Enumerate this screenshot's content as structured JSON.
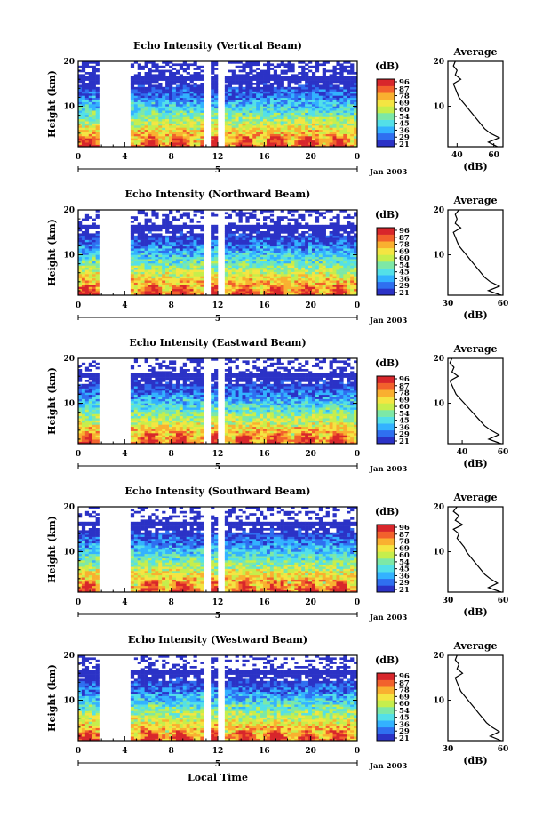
{
  "figure": {
    "xlabel": "Local Time",
    "date_label": "Jan 2003",
    "date_tick": "5",
    "ylabel": "Height (km)",
    "colorbar_unit": "(dB)",
    "colorbar_ticks": [
      "96",
      "87",
      "78",
      "69",
      "60",
      "54",
      "45",
      "36",
      "29",
      "21"
    ],
    "profile_title": "Average",
    "profile_xlabel": "(dB)"
  },
  "colors": {
    "colormap": [
      "#2b32c6",
      "#2f6ff0",
      "#33b2ff",
      "#53e0e8",
      "#7de8a6",
      "#c6ee4c",
      "#f4e542",
      "#f9b030",
      "#f2612c",
      "#d8262b"
    ],
    "profile_line": "#000000"
  },
  "chart_data": [
    {
      "type": "heatmap",
      "title": "Echo Intensity (Vertical Beam)",
      "xlabel": "Local Time",
      "ylabel": "Height (km)",
      "x_ticks": [
        "0",
        "4",
        "8",
        "12",
        "16",
        "20",
        "0"
      ],
      "xlim": [
        0,
        24
      ],
      "y_ticks": [
        "10",
        "20"
      ],
      "ylim": [
        1,
        20
      ],
      "colorbar": {
        "label": "(dB)",
        "ticks": [
          "96",
          "87",
          "78",
          "69",
          "60",
          "54",
          "45",
          "36",
          "29",
          "21"
        ]
      },
      "data_gaps_hours": [
        [
          1.9,
          4.5
        ],
        [
          10.9,
          11.4
        ],
        [
          12.1,
          12.6
        ],
        [
          13.1,
          13.3
        ],
        [
          22.7,
          22.9
        ]
      ],
      "profile": {
        "title": "Average",
        "xlabel": "(dB)",
        "x_ticks": [
          "40",
          "60"
        ],
        "xlim": [
          35,
          65
        ],
        "y_ticks": [
          "10",
          "20"
        ],
        "heights": [
          1,
          2,
          3,
          4,
          5,
          6,
          7,
          8,
          9,
          10,
          11,
          12,
          13,
          14,
          15,
          16,
          17,
          18,
          19,
          20
        ],
        "values": [
          62,
          57,
          63,
          58,
          55,
          53,
          51,
          49,
          47,
          45,
          43,
          41,
          40,
          39,
          38,
          42,
          39,
          40,
          38,
          39
        ]
      }
    },
    {
      "type": "heatmap",
      "title": "Echo Intensity (Northward Beam)",
      "xlabel": "Local Time",
      "ylabel": "Height (km)",
      "x_ticks": [
        "0",
        "4",
        "8",
        "12",
        "16",
        "20",
        "0"
      ],
      "xlim": [
        0,
        24
      ],
      "y_ticks": [
        "10",
        "20"
      ],
      "ylim": [
        1,
        20
      ],
      "colorbar": {
        "label": "(dB)",
        "ticks": [
          "96",
          "87",
          "78",
          "69",
          "60",
          "54",
          "45",
          "36",
          "29",
          "21"
        ]
      },
      "data_gaps_hours": [
        [
          1.9,
          4.5
        ],
        [
          10.9,
          11.4
        ],
        [
          12.1,
          12.6
        ],
        [
          13.1,
          13.3
        ],
        [
          22.7,
          22.9
        ]
      ],
      "profile": {
        "title": "Average",
        "xlabel": "(dB)",
        "x_ticks": [
          "30",
          "60"
        ],
        "xlim": [
          30,
          60
        ],
        "y_ticks": [
          "10",
          "20"
        ],
        "heights": [
          1,
          2,
          3,
          4,
          5,
          6,
          7,
          8,
          9,
          10,
          11,
          12,
          13,
          14,
          15,
          16,
          17,
          18,
          19,
          20
        ],
        "values": [
          59,
          52,
          58,
          53,
          50,
          48,
          46,
          44,
          42,
          40,
          38,
          36,
          35,
          34,
          33,
          37,
          34,
          35,
          34,
          36
        ]
      }
    },
    {
      "type": "heatmap",
      "title": "Echo Intensity (Eastward Beam)",
      "xlabel": "Local Time",
      "ylabel": "Height (km)",
      "x_ticks": [
        "0",
        "4",
        "8",
        "12",
        "16",
        "20",
        "0"
      ],
      "xlim": [
        0,
        24
      ],
      "y_ticks": [
        "10",
        "20"
      ],
      "ylim": [
        1,
        20
      ],
      "colorbar": {
        "label": "(dB)",
        "ticks": [
          "96",
          "87",
          "78",
          "69",
          "60",
          "54",
          "45",
          "36",
          "29",
          "21"
        ]
      },
      "data_gaps_hours": [
        [
          1.9,
          4.5
        ],
        [
          10.9,
          11.4
        ],
        [
          12.1,
          12.6
        ],
        [
          13.1,
          13.3
        ],
        [
          22.7,
          22.9
        ]
      ],
      "profile": {
        "title": "Average",
        "xlabel": "(dB)",
        "x_ticks": [
          "40",
          "60"
        ],
        "xlim": [
          33,
          60
        ],
        "y_ticks": [
          "10",
          "20"
        ],
        "heights": [
          1,
          2,
          3,
          4,
          5,
          6,
          7,
          8,
          9,
          10,
          11,
          12,
          13,
          14,
          15,
          16,
          17,
          18,
          19,
          20
        ],
        "values": [
          59,
          53,
          58,
          54,
          51,
          49,
          47,
          45,
          43,
          41,
          39,
          37,
          36,
          35,
          34,
          38,
          35,
          36,
          34,
          35
        ]
      }
    },
    {
      "type": "heatmap",
      "title": "Echo Intensity (Southward Beam)",
      "xlabel": "Local Time",
      "ylabel": "Height (km)",
      "x_ticks": [
        "0",
        "4",
        "8",
        "12",
        "16",
        "20",
        "0"
      ],
      "xlim": [
        0,
        24
      ],
      "y_ticks": [
        "10",
        "20"
      ],
      "ylim": [
        1,
        20
      ],
      "colorbar": {
        "label": "(dB)",
        "ticks": [
          "96",
          "87",
          "78",
          "69",
          "60",
          "54",
          "45",
          "36",
          "29",
          "21"
        ]
      },
      "data_gaps_hours": [
        [
          1.9,
          4.5
        ],
        [
          10.9,
          11.4
        ],
        [
          12.1,
          12.6
        ],
        [
          13.1,
          13.3
        ],
        [
          22.7,
          22.9
        ]
      ],
      "profile": {
        "title": "Average",
        "xlabel": "(dB)",
        "x_ticks": [
          "30",
          "60"
        ],
        "xlim": [
          30,
          60
        ],
        "y_ticks": [
          "10",
          "20"
        ],
        "heights": [
          1,
          2,
          3,
          4,
          5,
          6,
          7,
          8,
          9,
          10,
          11,
          12,
          13,
          14,
          15,
          16,
          17,
          18,
          19,
          20
        ],
        "values": [
          59,
          52,
          57,
          53,
          50,
          48,
          46,
          44,
          42,
          40,
          39,
          37,
          35,
          36,
          33,
          38,
          34,
          36,
          33,
          35
        ]
      }
    },
    {
      "type": "heatmap",
      "title": "Echo Intensity (Westward Beam)",
      "xlabel": "Local Time",
      "ylabel": "Height (km)",
      "x_ticks": [
        "0",
        "4",
        "8",
        "12",
        "16",
        "20",
        "0"
      ],
      "xlim": [
        0,
        24
      ],
      "y_ticks": [
        "10",
        "20"
      ],
      "ylim": [
        1,
        20
      ],
      "colorbar": {
        "label": "(dB)",
        "ticks": [
          "96",
          "87",
          "78",
          "69",
          "60",
          "54",
          "45",
          "36",
          "29",
          "21"
        ]
      },
      "data_gaps_hours": [
        [
          1.9,
          4.5
        ],
        [
          10.9,
          11.4
        ],
        [
          12.1,
          12.6
        ],
        [
          13.1,
          13.3
        ],
        [
          22.7,
          22.9
        ]
      ],
      "profile": {
        "title": "Average",
        "xlabel": "(dB)",
        "x_ticks": [
          "30",
          "60"
        ],
        "xlim": [
          30,
          60
        ],
        "y_ticks": [
          "10",
          "20"
        ],
        "heights": [
          1,
          2,
          3,
          4,
          5,
          6,
          7,
          8,
          9,
          10,
          11,
          12,
          13,
          14,
          15,
          16,
          17,
          18,
          19,
          20
        ],
        "values": [
          59,
          53,
          58,
          54,
          51,
          49,
          47,
          45,
          43,
          41,
          39,
          37,
          36,
          35,
          34,
          38,
          35,
          36,
          34,
          35
        ]
      }
    }
  ]
}
